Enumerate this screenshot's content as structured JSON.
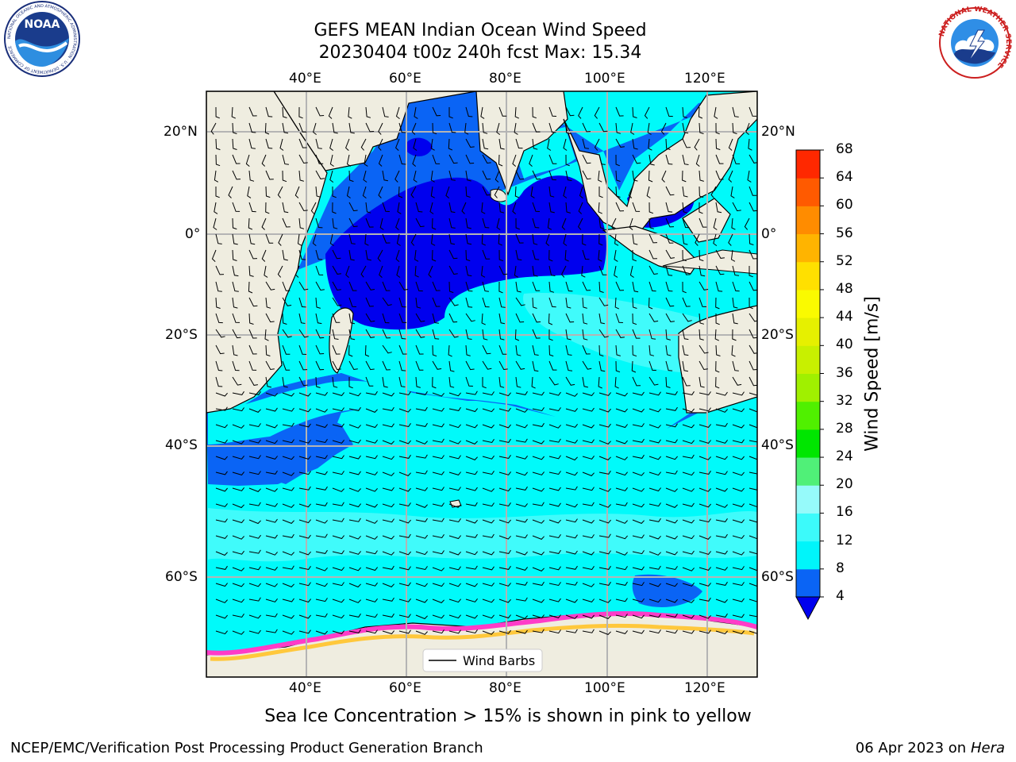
{
  "header": {
    "title_line1": "GEFS MEAN Indian Ocean Wind Speed",
    "title_line2": "20230404 t00z 240h fcst   Max: 15.34"
  },
  "logos": {
    "noaa_text": "NOAA",
    "noaa_ring_text": "NATIONAL OCEANIC AND ATMOSPHERIC ADMINISTRATION · U.S. DEPARTMENT OF COMMERCE",
    "nws_ring_text": "NATIONAL WEATHER SERVICE"
  },
  "map": {
    "lon_ticks": [
      "40°E",
      "60°E",
      "80°E",
      "100°E",
      "120°E"
    ],
    "lat_ticks_left": [
      "20°N",
      "0°",
      "20°S",
      "40°S",
      "60°S"
    ],
    "lat_ticks_right": [
      "20°N",
      "0°",
      "20°S",
      "40°S",
      "60°S"
    ],
    "legend_label": "Wind Barbs",
    "colors": {
      "land": "#efede0",
      "deep_blue": "#0000ee",
      "blue": "#0a64f5",
      "cyan": "#00fafa",
      "light_cyan": "#40fbfb",
      "sea_ice_pink": "#ff3cc8",
      "sea_ice_yellow": "#ffc83c"
    }
  },
  "colorbar": {
    "label": "Wind Speed [m/s]",
    "ticks": [
      "4",
      "8",
      "12",
      "16",
      "20",
      "24",
      "28",
      "32",
      "36",
      "40",
      "44",
      "48",
      "52",
      "56",
      "60",
      "64",
      "68"
    ],
    "colors": [
      "#0a64f5",
      "#00f5fa",
      "#3cfafa",
      "#96fafa",
      "#50f078",
      "#00e600",
      "#50f000",
      "#a0f000",
      "#c8f000",
      "#e6f000",
      "#fafa00",
      "#ffe000",
      "#ffb400",
      "#ff8c00",
      "#ff5a00",
      "#ff2800",
      "#ff0000"
    ],
    "under_color": "#0000ee"
  },
  "caption": "Sea Ice Concentration > 15% is shown in pink to yellow",
  "footer": {
    "left": "NCEP/EMC/Verification Post Processing Product Generation Branch",
    "date": "06 Apr 2023 on ",
    "machine": "Hera"
  }
}
